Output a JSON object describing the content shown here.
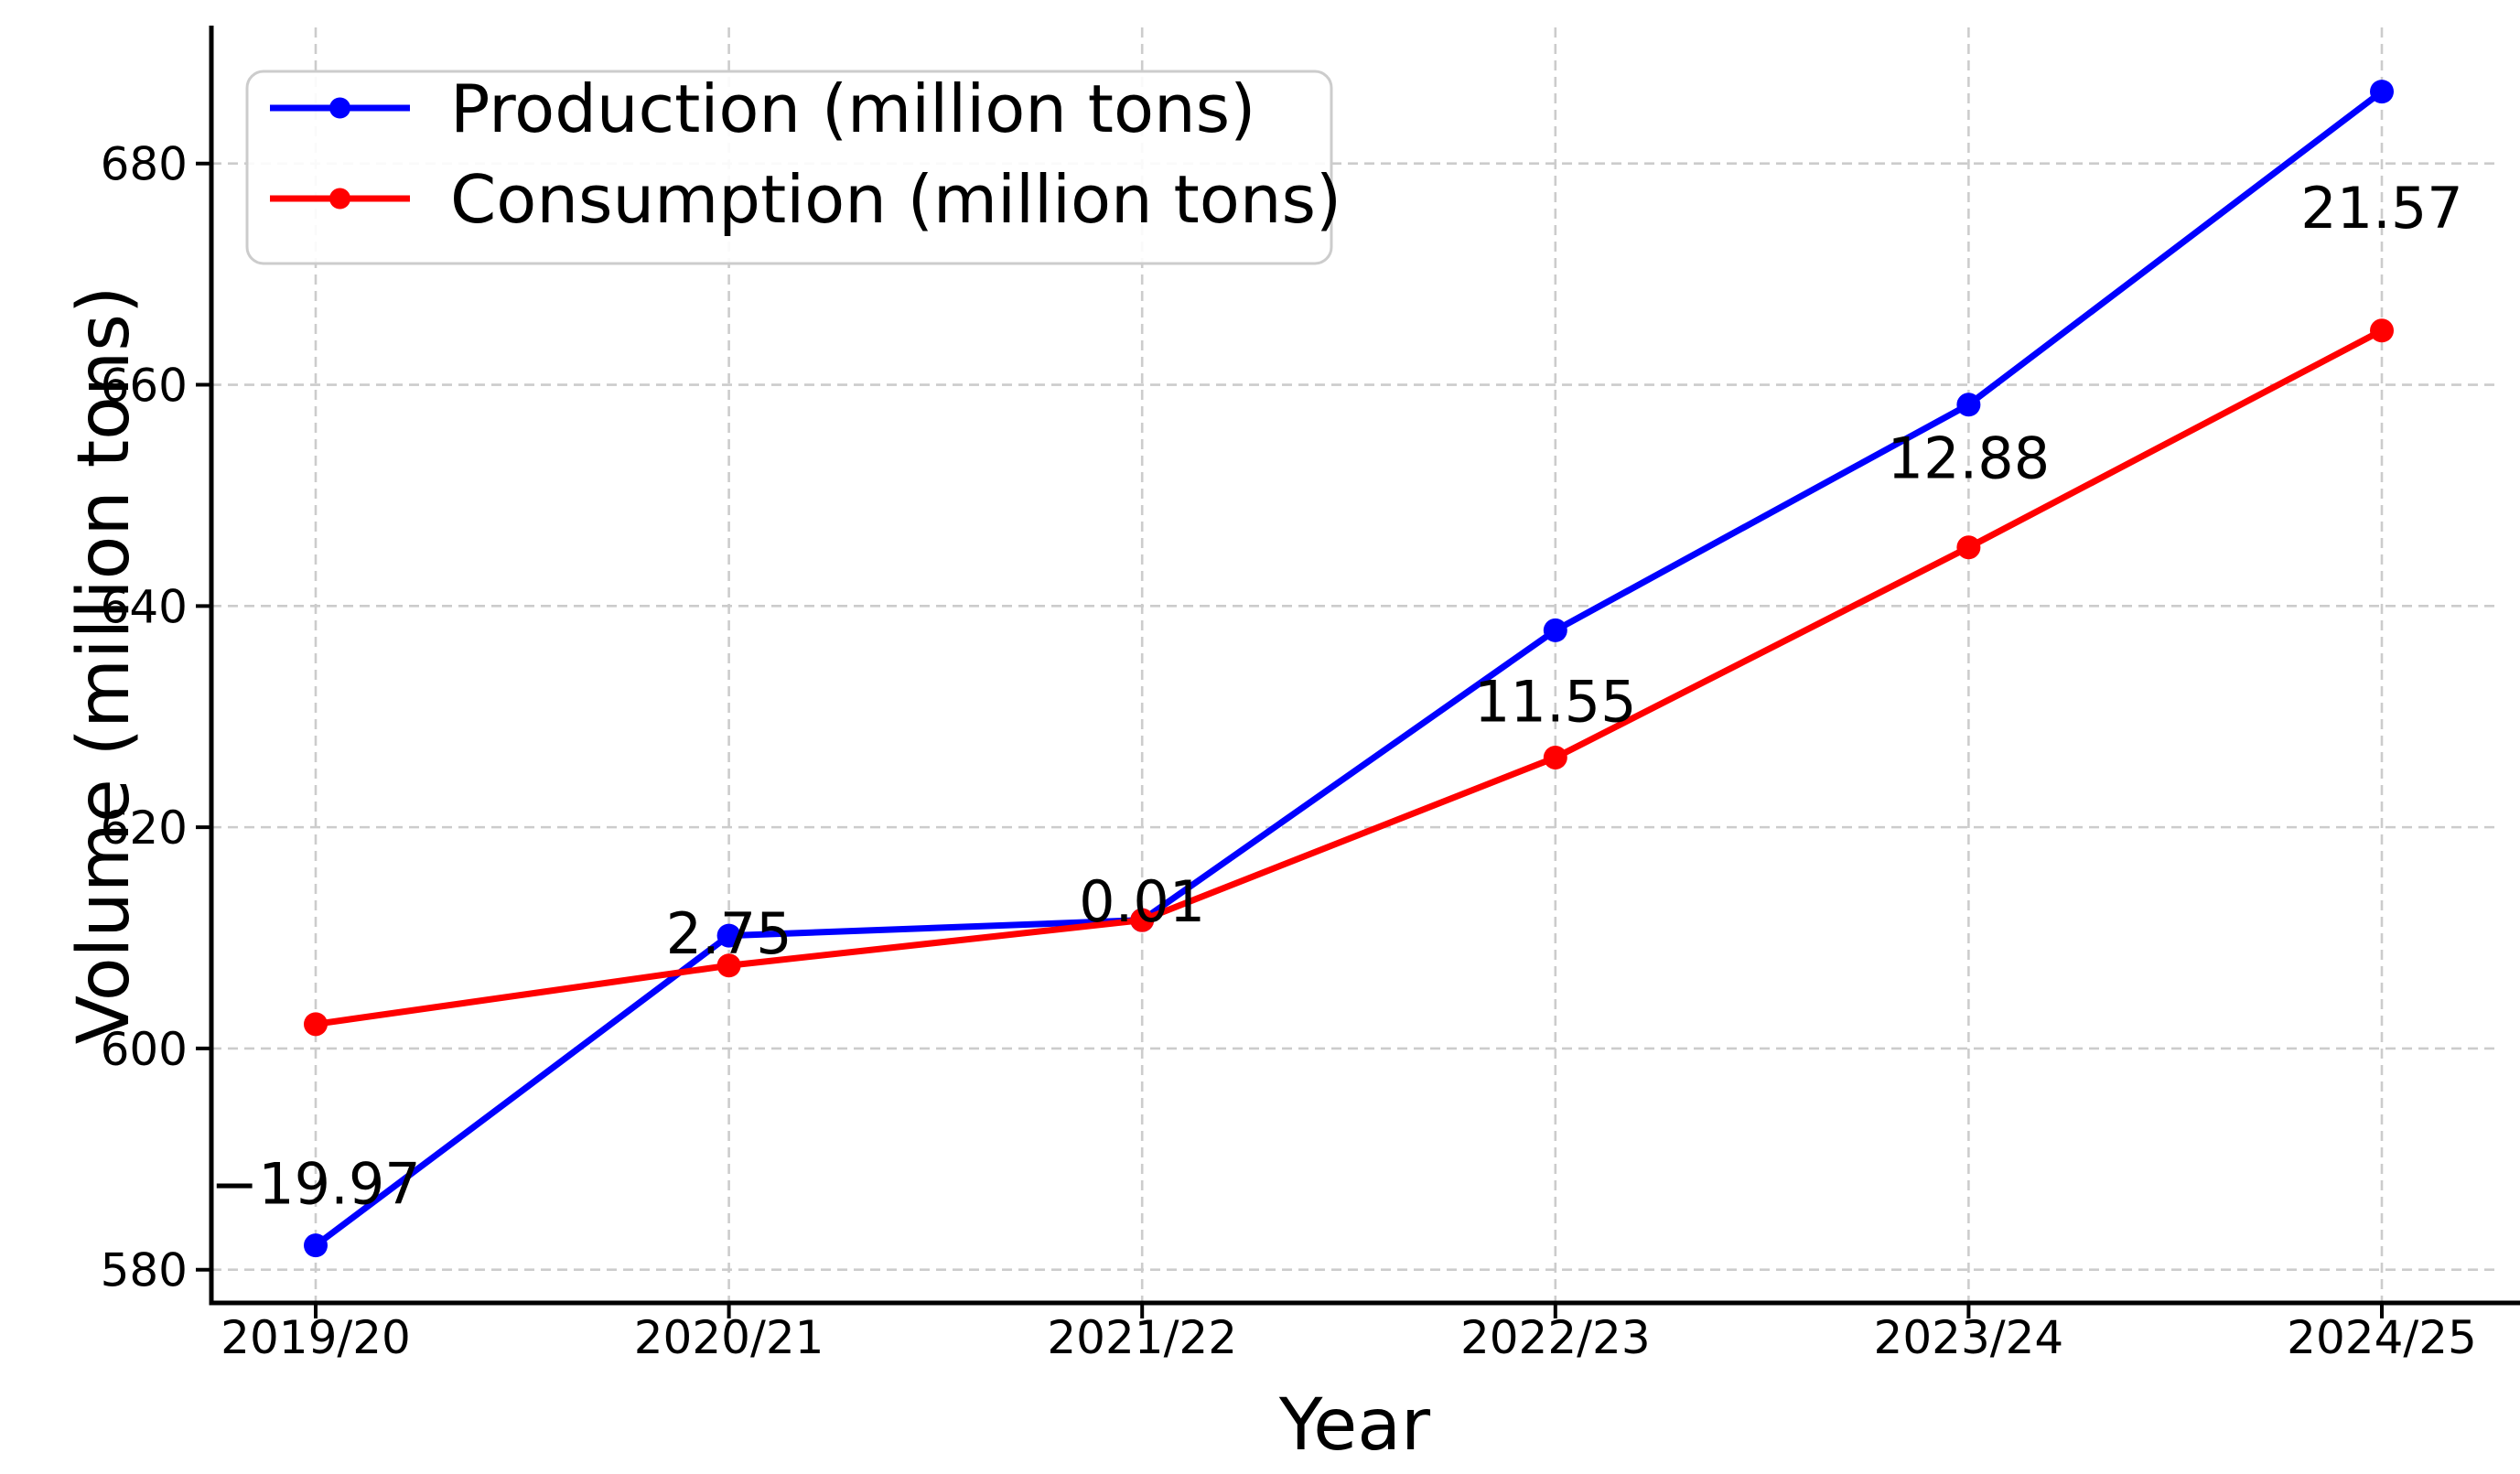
{
  "chart_data": {
    "type": "line",
    "title": "",
    "xlabel": "Year",
    "ylabel": "Volume (million tons)",
    "categories": [
      "2019/20",
      "2020/21",
      "2021/22",
      "2022/23",
      "2023/24",
      "2024/25"
    ],
    "series": [
      {
        "name": "Production (million tons)",
        "color": "#0000ff",
        "marker": "circle",
        "line_style": "solid",
        "values": [
          582.2,
          610.2,
          611.6,
          637.8,
          658.2,
          686.5
        ]
      },
      {
        "name": "Consumption (million tons)",
        "color": "#ff0000",
        "marker": "circle",
        "line_style": "solid",
        "values": [
          602.2,
          607.5,
          611.6,
          626.3,
          645.3,
          664.9
        ]
      }
    ],
    "annotations": [
      {
        "label": "−19.97",
        "x": 0,
        "y": 587.8
      },
      {
        "label": "2.75",
        "x": 1,
        "y": 610.4
      },
      {
        "label": "0.01",
        "x": 2,
        "y": 613.3
      },
      {
        "label": "11.55",
        "x": 3,
        "y": 631.4
      },
      {
        "label": "12.88",
        "x": 4,
        "y": 653.4
      },
      {
        "label": "21.57",
        "x": 5,
        "y": 676.0
      }
    ],
    "yticks": [
      580,
      600,
      620,
      640,
      660,
      680
    ],
    "ylim": [
      577.0,
      692.3
    ],
    "grid": true,
    "grid_style": "dashed",
    "legend": {
      "position": "upper left",
      "labels": [
        "Production (million tons)",
        "Consumption (million tons)"
      ]
    },
    "colors": {
      "production": "#0000ff",
      "consumption": "#ff0000",
      "grid": "#cccccc",
      "axis": "#000000",
      "text": "#000000",
      "legend_border": "#cccccc",
      "background": "#ffffff"
    }
  }
}
